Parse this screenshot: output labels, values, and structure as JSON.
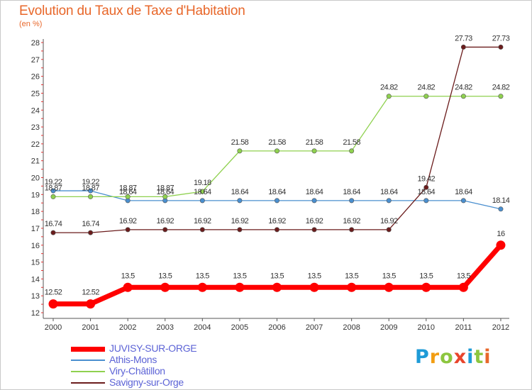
{
  "title": "Evolution du Taux de Taxe d'Habitation",
  "unit_label": "(en %)",
  "logo": {
    "text": "Proxiti",
    "letters": [
      "P",
      "r",
      "o",
      "x",
      "i",
      "t",
      "i"
    ]
  },
  "chart_data": {
    "type": "line",
    "title": "Evolution du Taux de Taxe d'Habitation",
    "xlabel": "",
    "ylabel": "(en %)",
    "x": [
      "2000",
      "2001",
      "2002",
      "2003",
      "2004",
      "2005",
      "2006",
      "2007",
      "2008",
      "2009",
      "2010",
      "2011",
      "2012"
    ],
    "ylim": [
      12,
      28
    ],
    "yticks": [
      12,
      13,
      14,
      15,
      16,
      17,
      18,
      19,
      20,
      21,
      22,
      23,
      24,
      25,
      26,
      27,
      28
    ],
    "grid": false,
    "legend_position": "bottom-left",
    "series": [
      {
        "name": "JUVISY-SUR-ORGE",
        "color": "#ff0000",
        "values": [
          12.52,
          12.52,
          13.5,
          13.5,
          13.5,
          13.5,
          13.5,
          13.5,
          13.5,
          13.5,
          13.5,
          13.5,
          16
        ],
        "labels": [
          "12.52",
          "12.52",
          "13.5",
          "13.5",
          "13.5",
          "13.5",
          "13.5",
          "13.5",
          "13.5",
          "13.5",
          "13.5",
          "13.5",
          "16"
        ]
      },
      {
        "name": "Athis-Mons",
        "color": "#4a8fcf",
        "values": [
          19.22,
          19.22,
          18.64,
          18.64,
          18.64,
          18.64,
          18.64,
          18.64,
          18.64,
          18.64,
          18.64,
          18.64,
          18.14
        ],
        "labels": [
          "19.22",
          "19.22",
          "18.64",
          "18.64",
          "18.64",
          "18.64",
          "18.64",
          "18.64",
          "18.64",
          "18.64",
          "18.64",
          "18.64",
          "18.14"
        ]
      },
      {
        "name": "Viry-Châtillon",
        "color": "#8fd14f",
        "values": [
          18.87,
          18.87,
          18.87,
          18.87,
          19.18,
          21.58,
          21.58,
          21.58,
          21.58,
          24.82,
          24.82,
          24.82,
          24.82
        ],
        "labels": [
          "18.87",
          "18.87",
          "18.87",
          "18.87",
          "19.18",
          "21.58",
          "21.58",
          "21.58",
          "21.58",
          "24.82",
          "24.82",
          "24.82",
          "24.82"
        ]
      },
      {
        "name": "Savigny-sur-Orge",
        "color": "#6b1c1c",
        "values": [
          16.74,
          16.74,
          16.92,
          16.92,
          16.92,
          16.92,
          16.92,
          16.92,
          16.92,
          16.92,
          19.42,
          27.73,
          27.73
        ],
        "labels": [
          "16.74",
          "16.74",
          "16.92",
          "16.92",
          "16.92",
          "16.92",
          "16.92",
          "16.92",
          "16.92",
          "16.92",
          "19.42",
          "27.73",
          "27.73"
        ]
      }
    ]
  }
}
